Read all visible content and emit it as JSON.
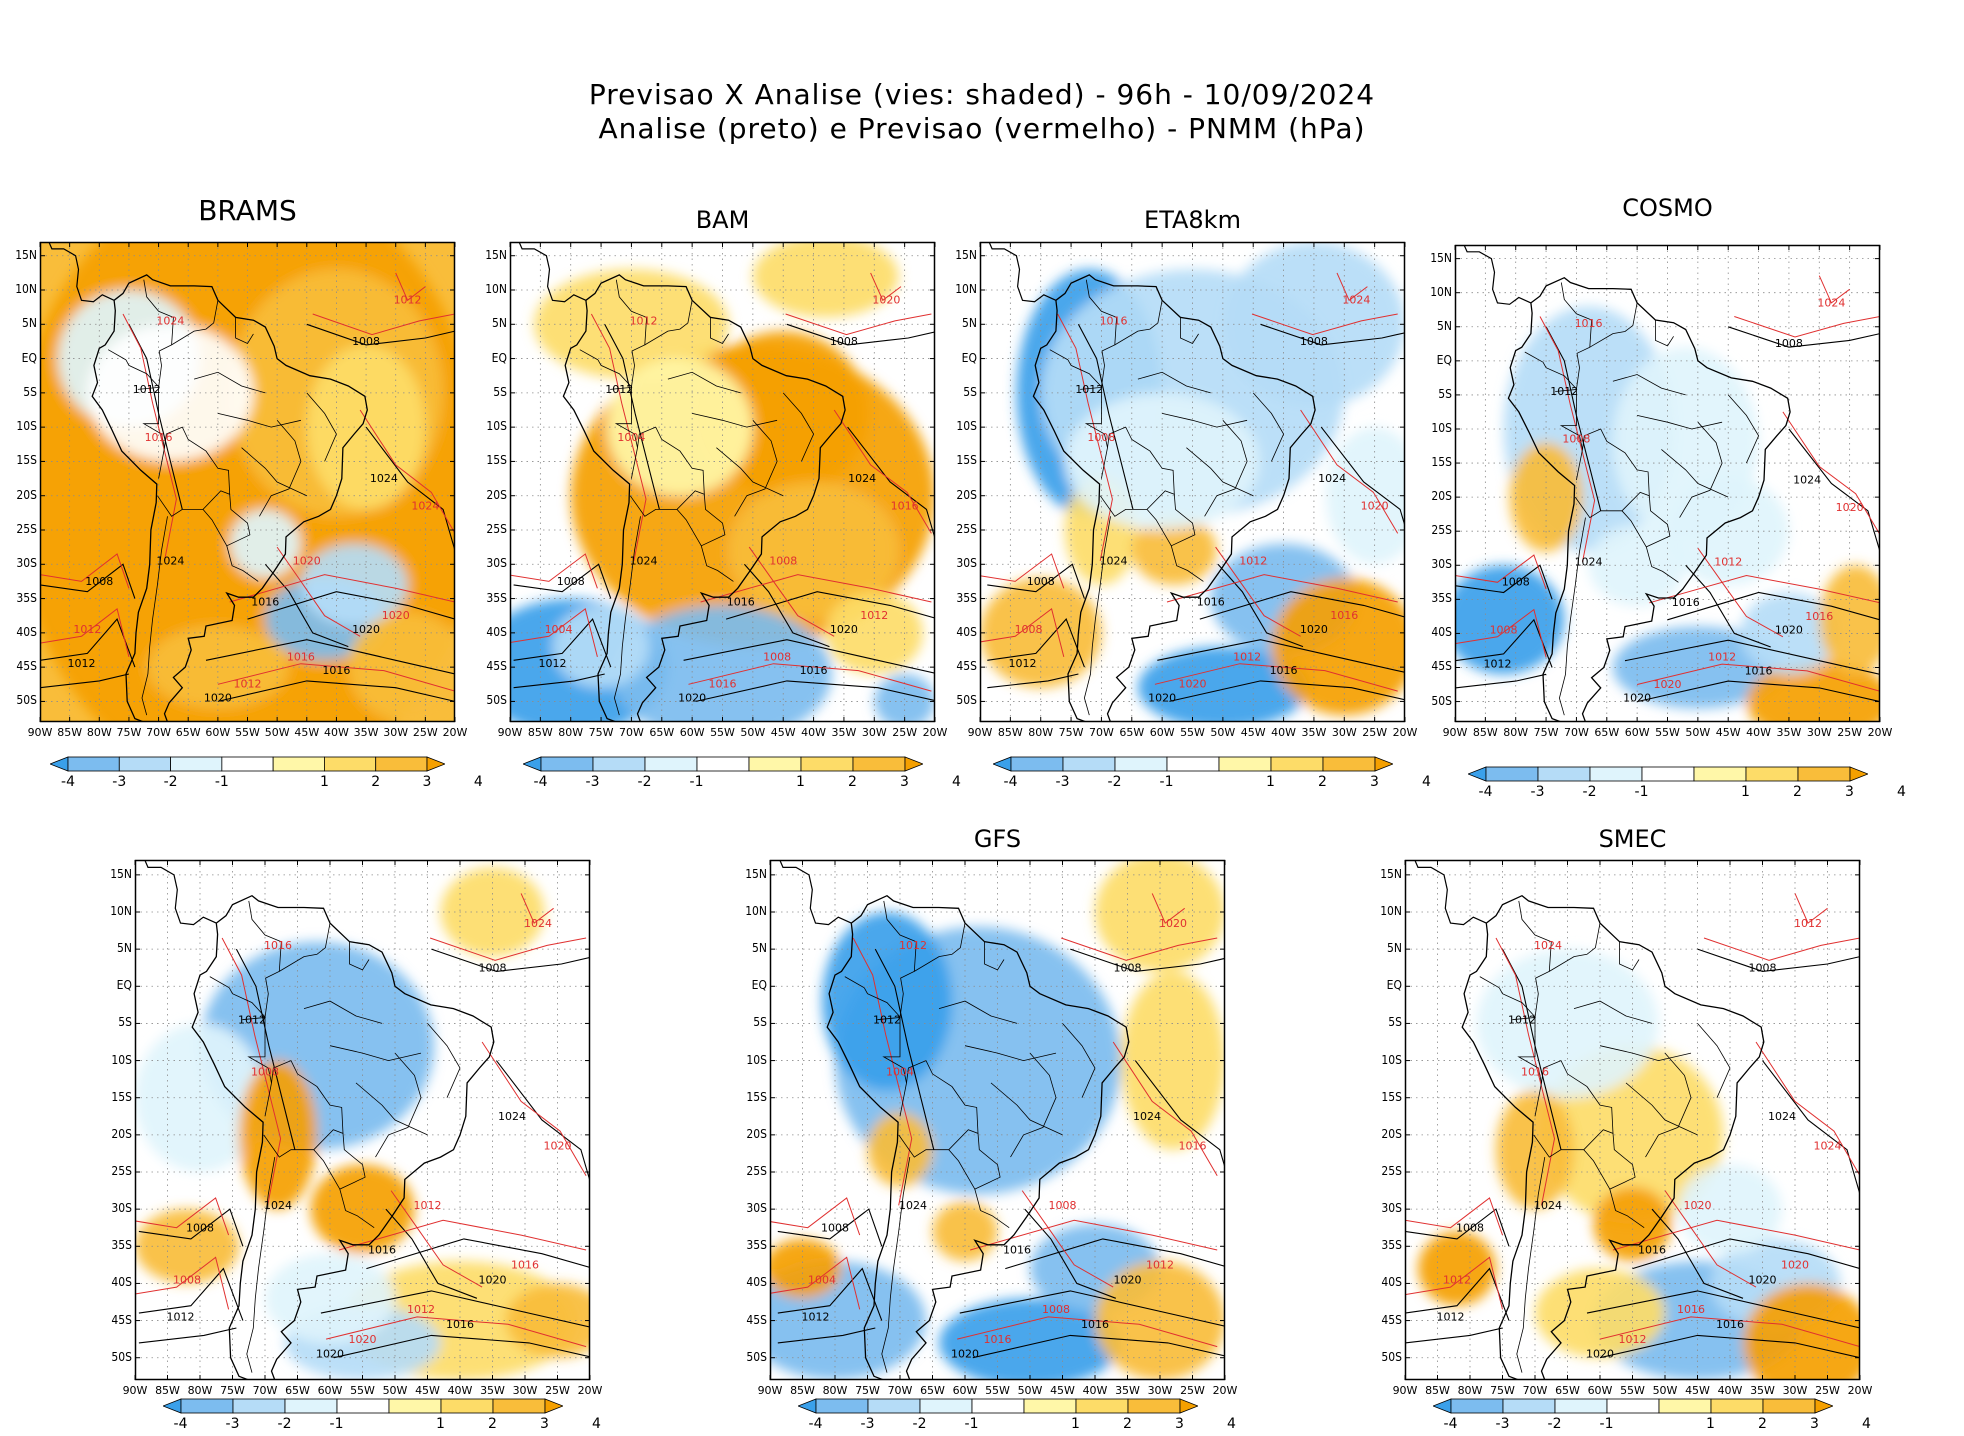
{
  "figure": {
    "title_line1": "Previsao X Analise (vies: shaded) - 96h - 10/09/2024",
    "title_line2": "Analise (preto) e Previsao (vermelho) - PNMM (hPa)"
  },
  "axes": {
    "lat_labels": [
      "15N",
      "10N",
      "5N",
      "EQ",
      "5S",
      "10S",
      "15S",
      "20S",
      "25S",
      "30S",
      "35S",
      "40S",
      "45S",
      "50S"
    ],
    "lon_labels": [
      "90W",
      "85W",
      "80W",
      "75W",
      "70W",
      "65W",
      "60W",
      "55W",
      "50W",
      "45W",
      "40W",
      "35W",
      "30W",
      "25W",
      "20W"
    ],
    "lat_range": [
      -53,
      17
    ],
    "lon_range": [
      -90,
      -20
    ]
  },
  "colorbar": {
    "labels": [
      "-4",
      "-3",
      "-2",
      "-1",
      "1",
      "2",
      "3",
      "4"
    ],
    "colors": [
      "#3aa0ea",
      "#7cbcef",
      "#b5dcf7",
      "#dff4fc",
      "#ffffff",
      "#fff7a8",
      "#fddc68",
      "#f9bd3a",
      "#f5a000"
    ]
  },
  "contour_colors": {
    "analysis": "#000000",
    "forecast": "#e03030"
  },
  "panels": [
    {
      "id": "brams",
      "title": "BRAMS",
      "bias": "warm",
      "black_labels": [
        "1008",
        "1012",
        "1016",
        "1020",
        "1024"
      ],
      "red_labels": [
        "1012",
        "1016",
        "1020",
        "1024"
      ]
    },
    {
      "id": "bam",
      "title": "BAM",
      "bias": "warm_se",
      "black_labels": [
        "1008",
        "1012",
        "1016",
        "1020",
        "1024"
      ],
      "red_labels": [
        "1004",
        "1008",
        "1012",
        "1016",
        "1020"
      ]
    },
    {
      "id": "eta8km",
      "title": "ETA8km",
      "bias": "cold",
      "black_labels": [
        "1008",
        "1012",
        "1016",
        "1020",
        "1024"
      ],
      "red_labels": [
        "1008",
        "1012",
        "1016",
        "1020",
        "1024"
      ]
    },
    {
      "id": "cosmo",
      "title": "COSMO",
      "bias": "mixed",
      "black_labels": [
        "1008",
        "1012",
        "1016",
        "1020",
        "1024"
      ],
      "red_labels": [
        "1008",
        "1012",
        "1016",
        "1020",
        "1024"
      ]
    },
    {
      "id": "panel5",
      "title": "",
      "bias": "mixed_cold_north",
      "black_labels": [
        "1008",
        "1012",
        "1016",
        "1020",
        "1024"
      ],
      "red_labels": [
        "1008",
        "1012",
        "1016",
        "1020",
        "1024"
      ]
    },
    {
      "id": "gfs",
      "title": "GFS",
      "bias": "cold_north",
      "black_labels": [
        "1008",
        "1012",
        "1016",
        "1020",
        "1024"
      ],
      "red_labels": [
        "1004",
        "1008",
        "1012",
        "1016",
        "1020"
      ]
    },
    {
      "id": "smec",
      "title": "SMEC",
      "bias": "mixed_warm",
      "black_labels": [
        "1008",
        "1012",
        "1016",
        "1020",
        "1024"
      ],
      "red_labels": [
        "1012",
        "1016",
        "1020",
        "1024"
      ]
    }
  ]
}
